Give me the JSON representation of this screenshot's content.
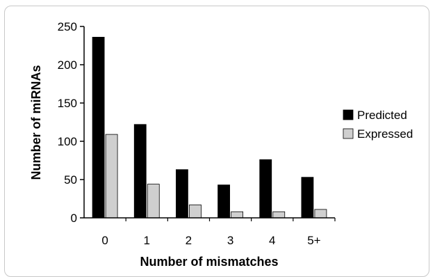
{
  "chart_data": {
    "type": "bar",
    "categories": [
      "0",
      "1",
      "2",
      "3",
      "4",
      "5+"
    ],
    "series": [
      {
        "name": "Predicted",
        "values": [
          236,
          122,
          63,
          43,
          76,
          53
        ],
        "color": "#000000"
      },
      {
        "name": "Expressed",
        "values": [
          109,
          44,
          17,
          8,
          8,
          11
        ],
        "color": "#cfcfcf"
      }
    ],
    "xlabel": "Number of mismatches",
    "ylabel": "Number of miRNAs",
    "ylim": [
      0,
      250
    ],
    "yticks": [
      0,
      50,
      100,
      150,
      200,
      250
    ],
    "grid": false,
    "legend_position": "right"
  }
}
